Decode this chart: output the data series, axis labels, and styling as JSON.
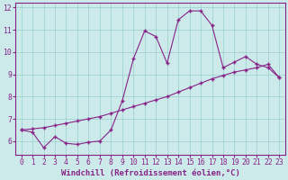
{
  "xlabel": "Windchill (Refroidissement éolien,°C)",
  "background_color": "#cceaea",
  "line_color": "#882288",
  "grid_color": "#99cccc",
  "xlim": [
    -0.5,
    23.5
  ],
  "ylim": [
    5.4,
    12.2
  ],
  "yticks": [
    6,
    7,
    8,
    9,
    10,
    11,
    12
  ],
  "xticks": [
    0,
    1,
    2,
    3,
    4,
    5,
    6,
    7,
    8,
    9,
    10,
    11,
    12,
    13,
    14,
    15,
    16,
    17,
    18,
    19,
    20,
    21,
    22,
    23
  ],
  "curve1_x": [
    0,
    1,
    2,
    3,
    4,
    5,
    6,
    7,
    8,
    9,
    10,
    11,
    12,
    13,
    14,
    15,
    16,
    17,
    18,
    19,
    20,
    21,
    22,
    23
  ],
  "curve1_y": [
    6.5,
    6.4,
    5.7,
    6.2,
    5.9,
    5.85,
    5.95,
    6.0,
    6.5,
    7.8,
    9.7,
    10.95,
    10.7,
    9.5,
    11.45,
    11.85,
    11.85,
    11.2,
    9.3,
    9.55,
    9.8,
    9.45,
    9.3,
    8.85
  ],
  "curve2_x": [
    0,
    1,
    2,
    3,
    4,
    5,
    6,
    7,
    8,
    9,
    10,
    11,
    12,
    13,
    14,
    15,
    16,
    17,
    18,
    19,
    20,
    21,
    22,
    23
  ],
  "curve2_y": [
    6.5,
    6.55,
    6.6,
    6.7,
    6.8,
    6.9,
    7.0,
    7.1,
    7.25,
    7.4,
    7.55,
    7.7,
    7.85,
    8.0,
    8.2,
    8.4,
    8.6,
    8.8,
    8.95,
    9.1,
    9.2,
    9.3,
    9.45,
    8.85
  ],
  "marker": "+",
  "markersize": 3,
  "linewidth": 0.8,
  "xlabel_fontsize": 6.5,
  "tick_fontsize": 5.8
}
